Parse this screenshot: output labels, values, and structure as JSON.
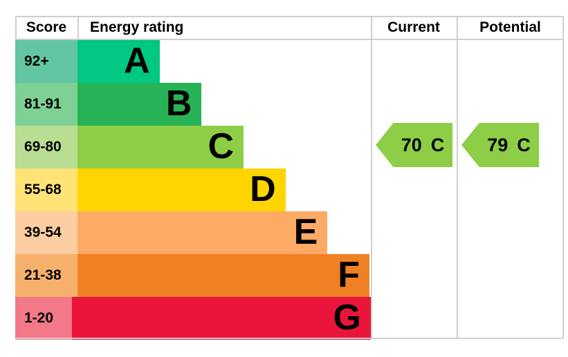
{
  "header": {
    "score": "Score",
    "rating": "Energy rating",
    "current": "Current",
    "potential": "Potential"
  },
  "chart_data": {
    "type": "bar",
    "title": "Energy rating",
    "categories": [
      "A",
      "B",
      "C",
      "D",
      "E",
      "F",
      "G"
    ],
    "bands": [
      {
        "letter": "A",
        "score": "92+",
        "bar_color": "#00c781",
        "score_color": "#61c6a1",
        "bar_width": "23.1%"
      },
      {
        "letter": "B",
        "score": "81-91",
        "bar_color": "#27b356",
        "score_color": "#7ed094",
        "bar_width": "34.9%"
      },
      {
        "letter": "C",
        "score": "69-80",
        "bar_color": "#8dce46",
        "score_color": "#b9dd92",
        "bar_width": "46.7%"
      },
      {
        "letter": "D",
        "score": "55-68",
        "bar_color": "#ffd500",
        "score_color": "#ffe376",
        "bar_width": "58.5%"
      },
      {
        "letter": "E",
        "score": "39-54",
        "bar_color": "#fcaa65",
        "score_color": "#fdcda2",
        "bar_width": "70.3%"
      },
      {
        "letter": "F",
        "score": "21-38",
        "bar_color": "#ef8023",
        "score_color": "#f5b16c",
        "bar_width": "82.1%"
      },
      {
        "letter": "G",
        "score": "1-20",
        "bar_color": "#e9153b",
        "score_color": "#f3788a",
        "bar_width": "93.9%"
      }
    ],
    "current": {
      "value": "70",
      "band": "C",
      "color": "#8dce46"
    },
    "potential": {
      "value": "79",
      "band": "C",
      "color": "#8dce46"
    }
  }
}
